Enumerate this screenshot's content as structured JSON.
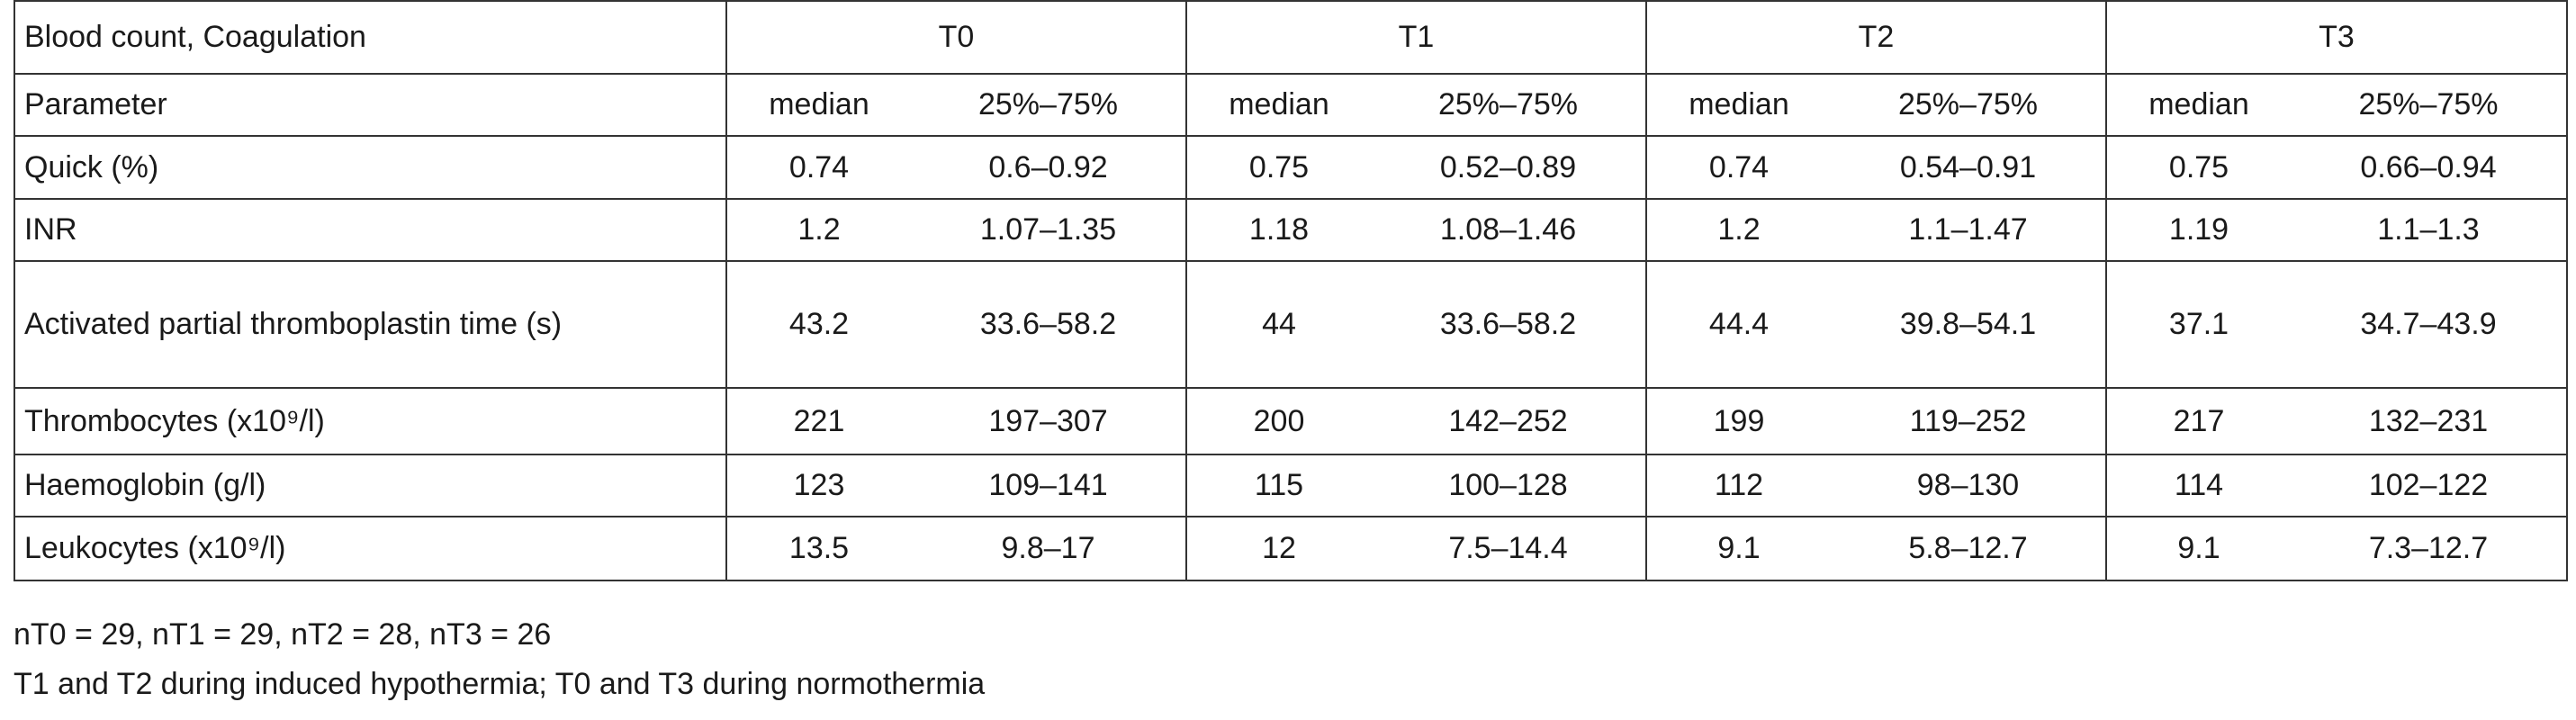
{
  "header": {
    "title": "Blood count, Coagulation",
    "groups": [
      "T0",
      "T1",
      "T2",
      "T3"
    ]
  },
  "subheader": {
    "label": "Parameter",
    "cells": [
      "median",
      "25%–75%",
      "median",
      "25%–75%",
      "median",
      "25%–75%",
      "median",
      "25%–75%"
    ]
  },
  "table": {
    "rows": [
      [
        "Quick (%)",
        "0.74",
        "0.6–0.92",
        "0.75",
        "0.52–0.89",
        "0.74",
        "0.54–0.91",
        "0.75",
        "0.66–0.94"
      ],
      [
        "INR",
        "1.2",
        "1.07–1.35",
        "1.18",
        "1.08–1.46",
        "1.2",
        "1.1–1.47",
        "1.19",
        "1.1–1.3"
      ],
      [
        "Activated partial thromboplastin time  (s)",
        "43.2",
        "33.6–58.2",
        "44",
        "33.6–58.2",
        "44.4",
        "39.8–54.1",
        "37.1",
        "34.7–43.9"
      ],
      [
        "Thrombocytes  (x10⁹/l)",
        "221",
        "197–307",
        "200",
        "142–252",
        "199",
        "119–252",
        "217",
        "132–231"
      ],
      [
        "Haemoglobin (g/l)",
        "123",
        "109–141",
        "115",
        "100–128",
        "112",
        "98–130",
        "114",
        "102–122"
      ],
      [
        "Leukocytes (x10⁹/l)",
        "13.5",
        "9.8–17",
        "12",
        "7.5–14.4",
        "9.1",
        "5.8–12.7",
        "9.1",
        "7.3–12.7"
      ]
    ]
  },
  "notes": [
    "nT0 = 29, nT1 = 29, nT2 = 28, nT3 = 26",
    "T1 and T2 during induced hypothermia; T0 and T3 during normothermia"
  ]
}
